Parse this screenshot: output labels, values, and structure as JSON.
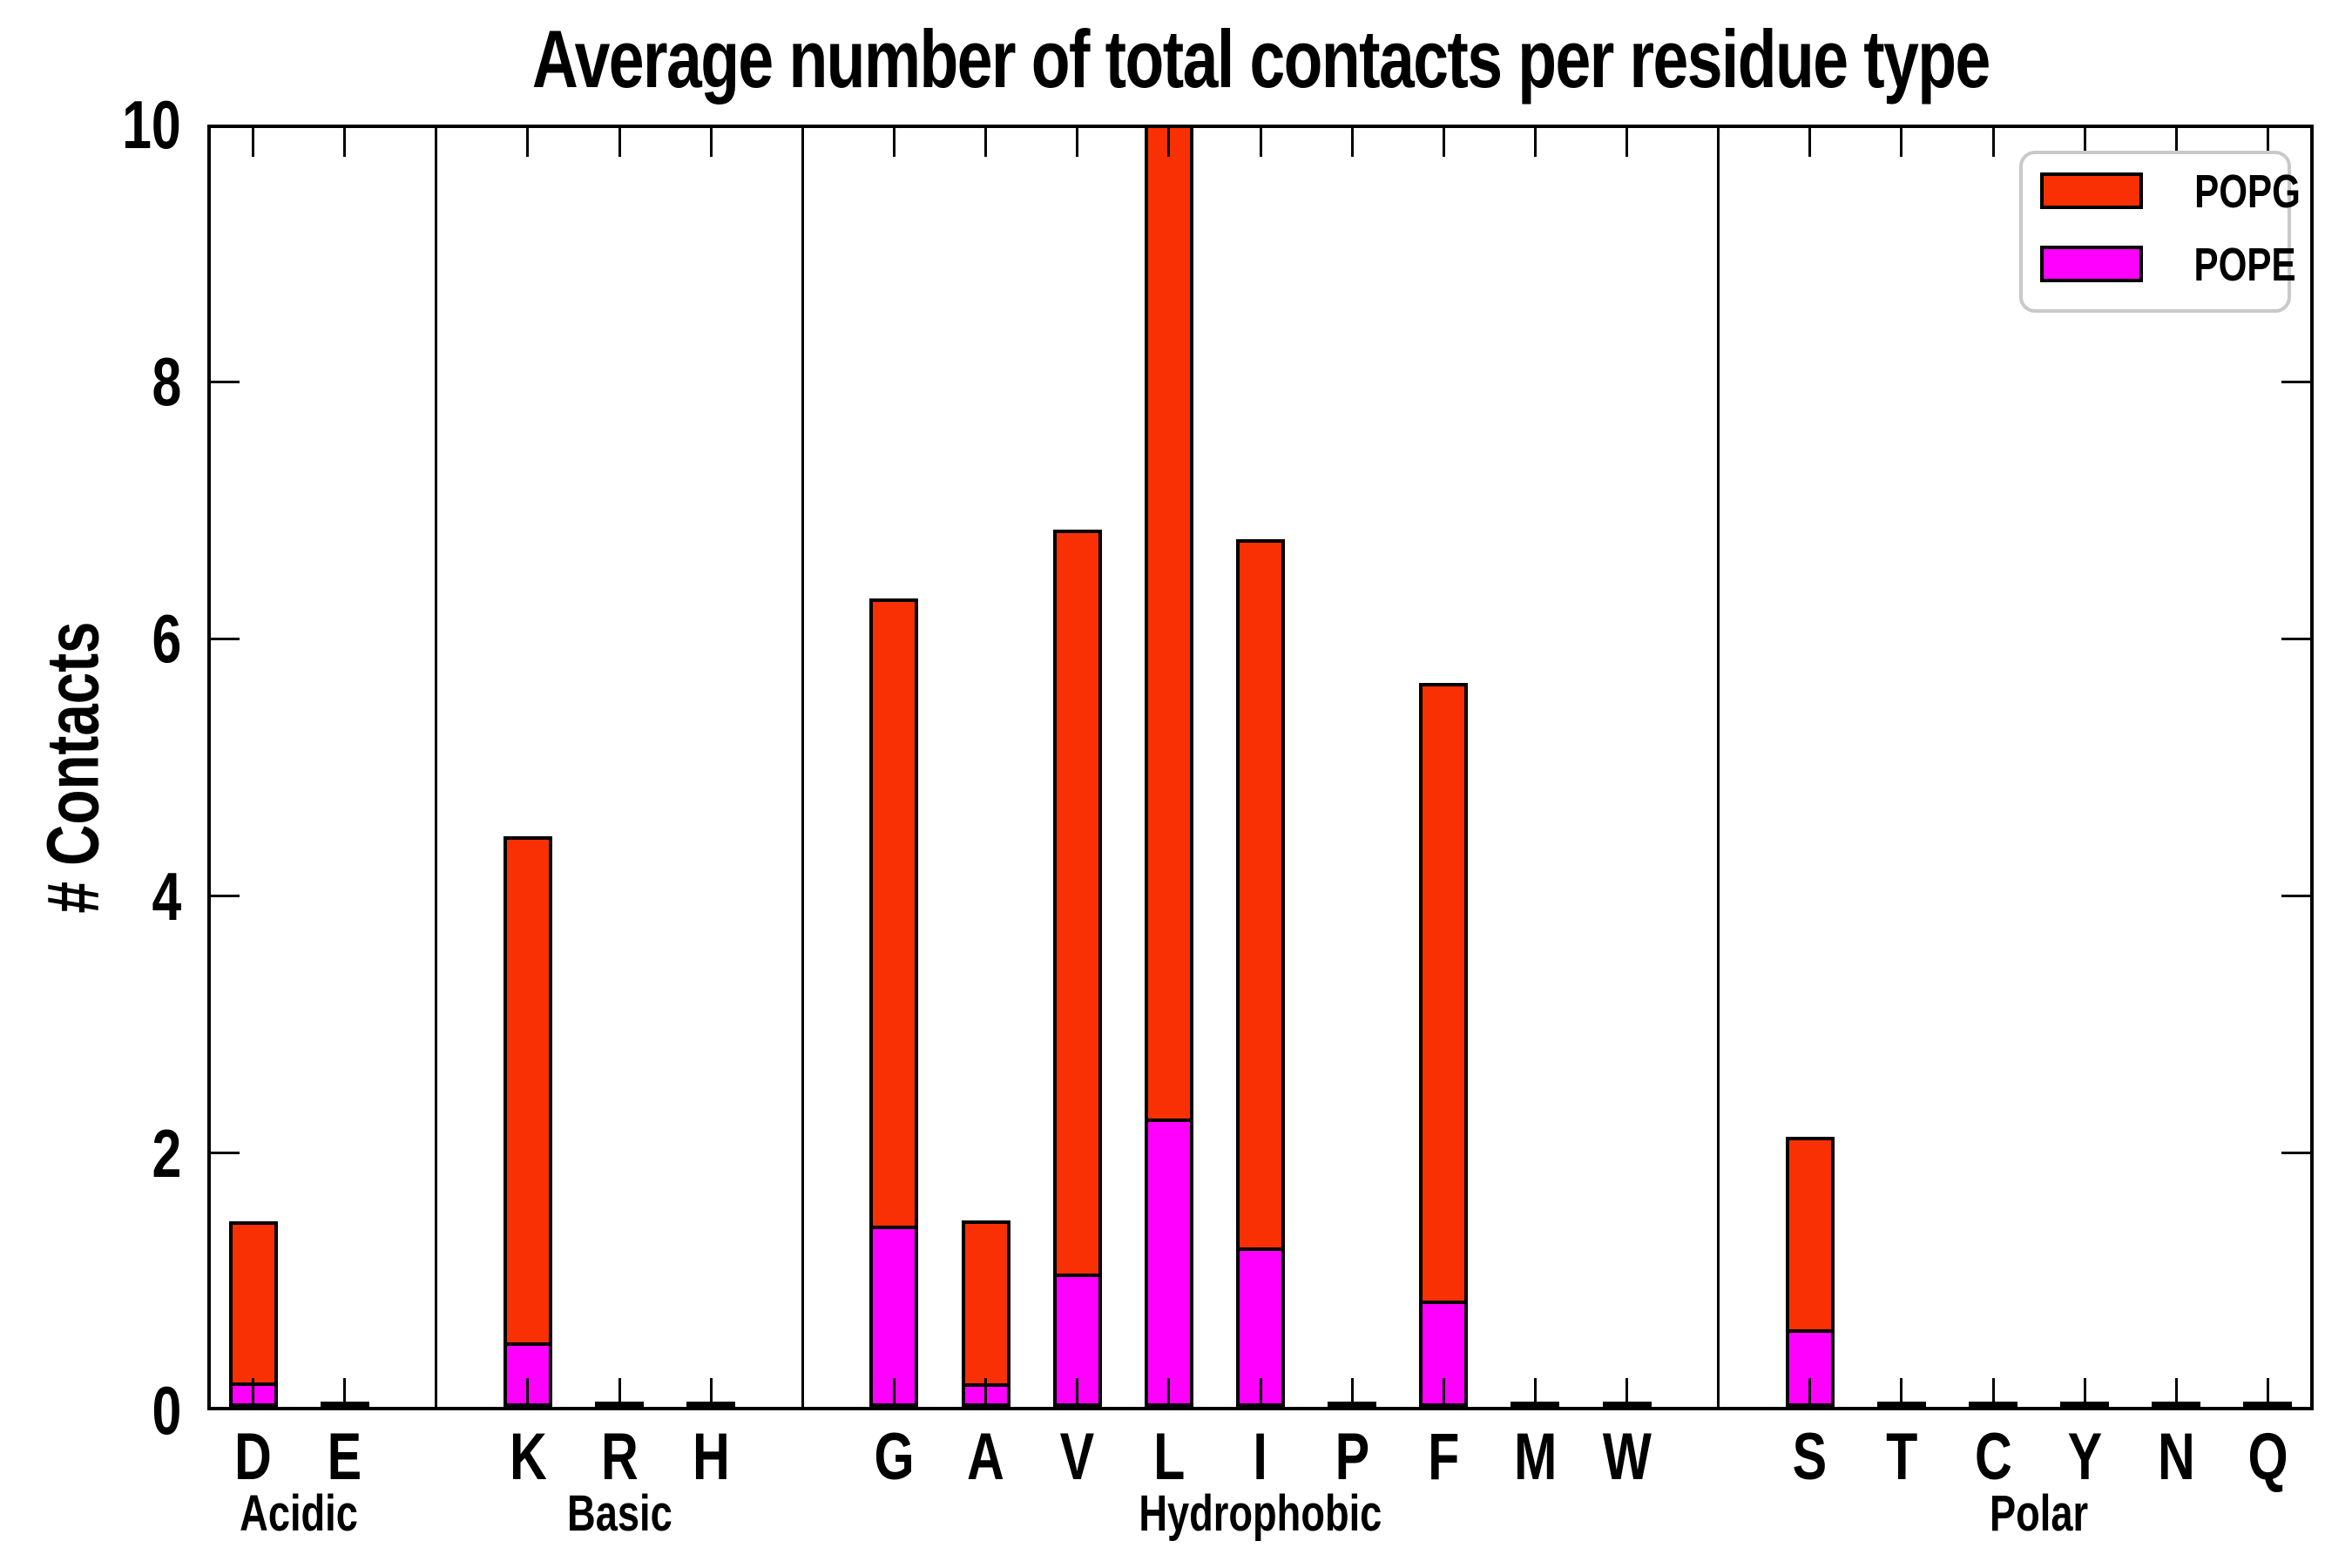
{
  "title": "Average number of total contacts per residue type",
  "ylabel": "# Contacts",
  "legend": {
    "items": [
      {
        "label": "POPG",
        "color": "#FA3005"
      },
      {
        "label": "POPE",
        "color": "#FF00FF"
      }
    ]
  },
  "colors": {
    "popg": "#FA3005",
    "pope": "#FF00FF",
    "axis": "#000000",
    "legend_border": "#C9C9C9",
    "background": "#FFFFFF"
  },
  "chart_data": {
    "type": "bar",
    "stacked": true,
    "title": "Average number of total contacts per residue type",
    "xlabel": "",
    "ylabel": "# Contacts",
    "ylim": [
      0,
      10
    ],
    "yticks": [
      0,
      2,
      4,
      6,
      8,
      10
    ],
    "grid": false,
    "legend_position": "upper right",
    "categories": [
      "D",
      "E",
      "K",
      "R",
      "H",
      "G",
      "A",
      "V",
      "L",
      "I",
      "P",
      "F",
      "M",
      "W",
      "S",
      "T",
      "C",
      "Y",
      "N",
      "Q"
    ],
    "groups": [
      {
        "label": "Acidic",
        "categories": [
          "D",
          "E"
        ]
      },
      {
        "label": "Basic",
        "categories": [
          "K",
          "R",
          "H"
        ]
      },
      {
        "label": "Hydrophobic",
        "categories": [
          "G",
          "A",
          "V",
          "L",
          "I",
          "P",
          "F",
          "M",
          "W"
        ]
      },
      {
        "label": "Polar",
        "categories": [
          "S",
          "T",
          "C",
          "Y",
          "N",
          "Q"
        ]
      }
    ],
    "series": [
      {
        "name": "POPE",
        "color": "#FF00FF",
        "values": [
          0.19,
          0.0,
          0.5,
          0.0,
          0.0,
          1.41,
          0.18,
          1.04,
          2.24,
          1.24,
          0.0,
          0.83,
          0.0,
          0.0,
          0.6,
          0.0,
          0.0,
          0.0,
          0.0,
          0.0
        ]
      },
      {
        "name": "POPG",
        "color": "#FA3005",
        "values": [
          1.25,
          0.02,
          3.94,
          0.02,
          0.02,
          4.88,
          1.27,
          5.78,
          7.76,
          5.51,
          0.02,
          4.8,
          0.02,
          0.02,
          1.5,
          0.02,
          0.02,
          0.02,
          0.02,
          0.02
        ]
      }
    ],
    "totals": [
      1.44,
      0.02,
      4.44,
      0.02,
      0.02,
      6.29,
      1.45,
      6.82,
      10.0,
      6.75,
      0.02,
      5.63,
      0.02,
      0.02,
      2.1,
      0.02,
      0.02,
      0.02,
      0.02,
      0.02
    ],
    "note_L_clipped_at_ymax": true
  }
}
